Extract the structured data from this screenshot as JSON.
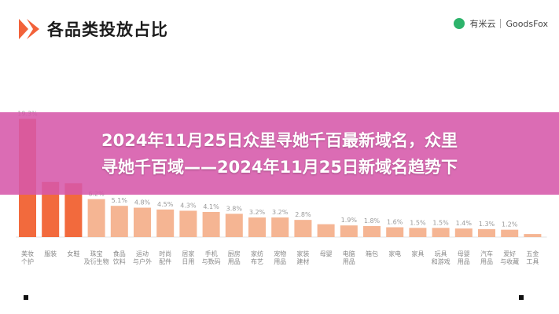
{
  "header": {
    "title": "各品类投放占比",
    "partner_left": "有米云",
    "partner_right": "GoodsFox"
  },
  "banner": {
    "line1": "2024年11月25日众里寻她千百最新域名，众里",
    "line2": "寻她千百域——2024年11月25日新域名趋势下"
  },
  "colors": {
    "highlight": "#f26a3d",
    "normal": "#f5b593",
    "brand": "#f2623a"
  },
  "chart_data": {
    "type": "bar",
    "categories": [
      "美妆个护",
      "服装",
      "女鞋",
      "珠宝及衍生物",
      "食品饮料",
      "运动与户外",
      "时尚配件",
      "居家日用",
      "手机与数码",
      "厨房用品",
      "家纺布艺",
      "宠物用品",
      "家装建材",
      "母婴",
      "电脑用品",
      "箱包",
      "家电",
      "家具",
      "玩具和游戏",
      "母婴用品",
      "汽车用品",
      "爱好与收藏",
      "五金工具"
    ],
    "labels": [
      "19.3%",
      "",
      "",
      "6.2%",
      "5.1%",
      "4.8%",
      "4.5%",
      "4.3%",
      "4.1%",
      "3.8%",
      "3.2%",
      "3.2%",
      "2.8%",
      "",
      "1.9%",
      "1.8%",
      "1.6%",
      "1.5%",
      "1.5%",
      "1.4%",
      "1.3%",
      "1.2%",
      ""
    ],
    "values": [
      19.3,
      9.0,
      8.8,
      6.2,
      5.1,
      4.8,
      4.5,
      4.3,
      4.1,
      3.8,
      3.2,
      3.2,
      2.8,
      2.1,
      1.9,
      1.8,
      1.6,
      1.5,
      1.5,
      1.4,
      1.3,
      1.2,
      0.5
    ],
    "highlight_count": 3,
    "ylim": [
      0,
      20
    ]
  }
}
